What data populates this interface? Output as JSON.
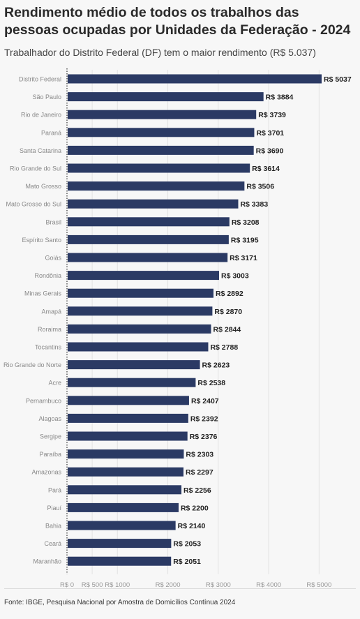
{
  "title": "Rendimento médio de todos os trabalhos das pessoas ocupadas por Unidades da Federação - 2024",
  "subtitle": "Trabalhador do Distrito Federal (DF) tem o maior rendimento (R$ 5.037)",
  "source": "Fonte: IBGE, Pesquisa Nacional por Amostra de Domicílios Contínua 2024",
  "colors": {
    "bar": "#2b3a64",
    "label": "#222222",
    "category": "#888888",
    "grid": "#e2e2e2",
    "axis": "#999999"
  },
  "chart_data": {
    "type": "bar",
    "orientation": "horizontal",
    "categories": [
      "Distrito Federal",
      "São Paulo",
      "Rio de Janeiro",
      "Paraná",
      "Santa Catarina",
      "Rio Grande do Sul",
      "Mato Grosso",
      "Mato Grosso do Sul",
      "Brasil",
      "Espírito Santo",
      "Goiás",
      "Rondônia",
      "Minas Gerais",
      "Amapá",
      "Roraima",
      "Tocantins",
      "Rio Grande do Norte",
      "Acre",
      "Pernambuco",
      "Alagoas",
      "Sergipe",
      "Paraíba",
      "Amazonas",
      "Pará",
      "Piauí",
      "Bahia",
      "Ceará",
      "Maranhão"
    ],
    "values": [
      5037,
      3884,
      3739,
      3701,
      3690,
      3614,
      3506,
      3383,
      3208,
      3195,
      3171,
      3003,
      2892,
      2870,
      2844,
      2788,
      2623,
      2538,
      2407,
      2392,
      2376,
      2303,
      2297,
      2256,
      2200,
      2140,
      2053,
      2051
    ],
    "value_labels": [
      "R$ 5037",
      "R$ 3884",
      "R$ 3739",
      "R$ 3701",
      "R$ 3690",
      "R$ 3614",
      "R$ 3506",
      "R$ 3383",
      "R$ 3208",
      "R$ 3195",
      "R$ 3171",
      "R$ 3003",
      "R$ 2892",
      "R$ 2870",
      "R$ 2844",
      "R$ 2788",
      "R$ 2623",
      "R$ 2538",
      "R$ 2407",
      "R$ 2392",
      "R$ 2376",
      "R$ 2303",
      "R$ 2297",
      "R$ 2256",
      "R$ 2200",
      "R$ 2140",
      "R$ 2053",
      "R$ 2051"
    ],
    "xlim": [
      0,
      5300
    ],
    "ticks": [
      0,
      500,
      1000,
      2000,
      3000,
      4000,
      5000
    ],
    "tick_labels": [
      "R$ 0",
      "R$ 500",
      "R$ 1000",
      "R$ 2000",
      "R$ 3000",
      "R$ 4000",
      "R$ 5000"
    ],
    "grid": true,
    "legend": "none"
  }
}
